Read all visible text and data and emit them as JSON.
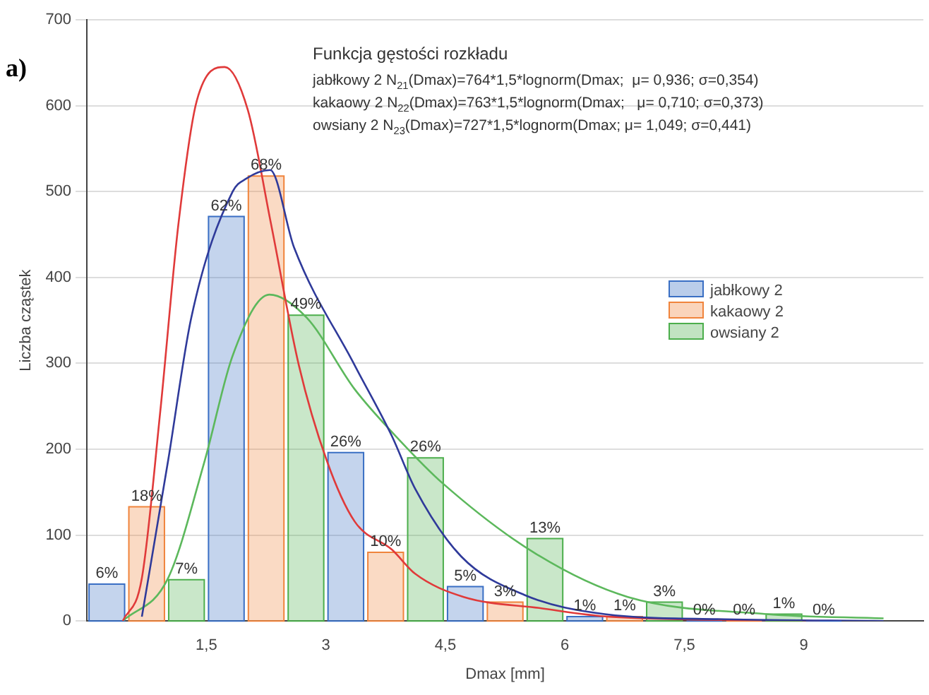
{
  "chart_data": {
    "type": "histogram",
    "title": "Funkcja gęstości rozkładu",
    "xlabel": "Dmax [mm]",
    "ylabel": "Liczba cząstek",
    "annotations": [
      "a)",
      "jabłkowy 2 N$_{21}$(Dmax)=764*1,5*lognorm(Dmax;  μ= 0,936; σ=0,354)",
      "kakaowy 2 N$_{22}$(Dmax)=763*1,5*lognorm(Dmax;   μ= 0,710; σ=0,373)",
      "owsiany 2 N$_{23}$(Dmax)=727*1,5*lognorm(Dmax; μ= 1,049; σ=0,441)",
      {
        "text": "6%",
        "x": 0.25,
        "y": 43
      },
      {
        "text": "62%",
        "x": 1.75,
        "y": 471
      },
      {
        "text": "26%",
        "x": 3.25,
        "y": 196
      },
      {
        "text": "5%",
        "x": 4.75,
        "y": 40
      },
      {
        "text": "1%",
        "x": 6.25,
        "y": 5
      },
      {
        "text": "0%",
        "x": 7.75,
        "y": 0
      },
      {
        "text": "0%",
        "x": 9.25,
        "y": 0
      },
      {
        "text": "18%",
        "x": 0.75,
        "y": 133
      },
      {
        "text": "68%",
        "x": 2.25,
        "y": 518
      },
      {
        "text": "10%",
        "x": 3.75,
        "y": 80
      },
      {
        "text": "3%",
        "x": 5.25,
        "y": 22
      },
      {
        "text": "1%",
        "x": 6.75,
        "y": 5
      },
      {
        "text": "0%",
        "x": 8.25,
        "y": 0
      },
      {
        "text": "7%",
        "x": 1.25,
        "y": 48
      },
      {
        "text": "49%",
        "x": 2.75,
        "y": 356
      },
      {
        "text": "26%",
        "x": 4.25,
        "y": 190
      },
      {
        "text": "13%",
        "x": 5.75,
        "y": 96
      },
      {
        "text": "3%",
        "x": 7.25,
        "y": 22
      },
      {
        "text": "1%",
        "x": 8.75,
        "y": 8
      }
    ],
    "bins": [
      0,
      1.5,
      3,
      4.5,
      6,
      7.5,
      9,
      10.5
    ],
    "series": [
      {
        "name": "jabłkowy 2",
        "color": "#3a6fc4",
        "values": [
          43,
          471,
          196,
          40,
          5,
          0,
          0
        ]
      },
      {
        "name": "kakaowy 2",
        "color": "#f0843c",
        "values": [
          133,
          518,
          80,
          22,
          5,
          0,
          null
        ]
      },
      {
        "name": "owsiany 2",
        "color": "#4cae4c",
        "values": [
          48,
          356,
          190,
          96,
          22,
          8,
          null
        ]
      },
      {
        "type": "line",
        "color": "#2f3a9a",
        "x": [
          0.69,
          1.02,
          1.31,
          1.83,
          2.0,
          2.3,
          2.6,
          3.36,
          3.83,
          4.12,
          4.7,
          5.5,
          6.5,
          8,
          10
        ],
        "values": [
          5,
          187,
          353,
          500,
          515,
          525,
          435,
          298,
          215,
          154,
          75,
          30,
          8,
          2,
          0
        ]
      },
      {
        "type": "line",
        "color": "#e03a3a",
        "x": [
          0.45,
          0.69,
          0.92,
          1.15,
          1.38,
          1.73,
          2.02,
          2.31,
          2.66,
          3.01,
          3.36,
          3.83,
          4.12,
          4.73,
          5.69,
          6.56,
          9.2
        ],
        "values": [
          0,
          50,
          243,
          463,
          606,
          645,
          595,
          463,
          298,
          187,
          116,
          83,
          55,
          28,
          15,
          5,
          0
        ]
      },
      {
        "type": "line",
        "color": "#5cb85c",
        "x": [
          0.45,
          1.02,
          1.48,
          1.83,
          2.29,
          2.76,
          3.36,
          3.94,
          4.47,
          5.64,
          6.79,
          8.53,
          10
        ],
        "values": [
          0,
          50,
          187,
          309,
          380,
          353,
          270,
          209,
          160,
          78,
          28,
          8,
          3
        ]
      }
    ],
    "xlim": [
      0,
      10.5
    ],
    "xticks": [
      {
        "value": 1.5,
        "label": "1,5"
      },
      3,
      {
        "value": 4.5,
        "label": "4,5"
      },
      6,
      {
        "value": 7.5,
        "label": "7,5"
      },
      9
    ],
    "ylim": [
      0,
      700
    ],
    "yticks": [
      0,
      100,
      200,
      300,
      400,
      500,
      600,
      700
    ],
    "grid": "y",
    "legend": "right"
  }
}
